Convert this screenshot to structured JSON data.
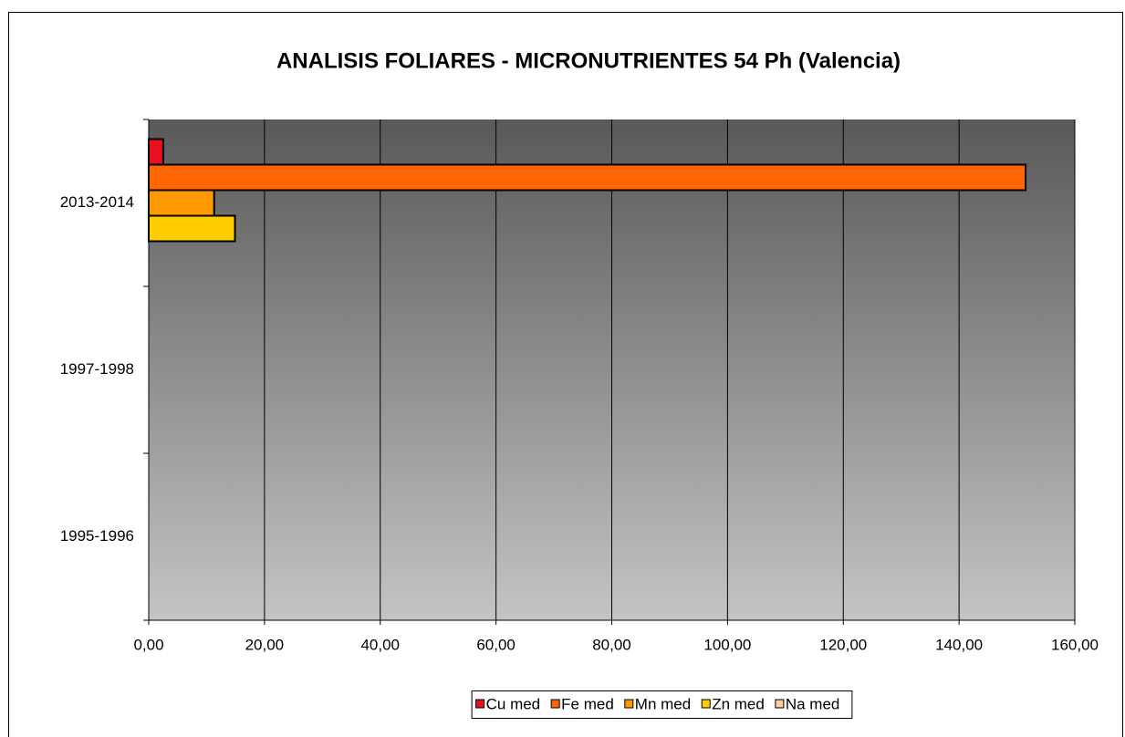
{
  "chart_data": {
    "type": "hbar",
    "title": "ANALISIS FOLIARES - MICRONUTRIENTES 54 Ph (Valencia)",
    "categories": [
      "2013-2014",
      "1997-1998",
      "1995-1996"
    ],
    "series": [
      {
        "name": "Cu med",
        "color": "#e8101e",
        "values": [
          2.5,
          null,
          null
        ]
      },
      {
        "name": "Fe med",
        "color": "#ff6600",
        "values": [
          151.5,
          null,
          null
        ]
      },
      {
        "name": "Mn med",
        "color": "#ff9900",
        "values": [
          11.3,
          null,
          null
        ]
      },
      {
        "name": "Zn med",
        "color": "#ffcc00",
        "values": [
          14.9,
          null,
          null
        ]
      },
      {
        "name": "Na med",
        "color": "#ffcc99",
        "values": [
          null,
          null,
          null
        ]
      }
    ],
    "xlim": [
      0,
      160
    ],
    "xticks": [
      {
        "value": 0,
        "label": "0,00"
      },
      {
        "value": 20,
        "label": "20,00"
      },
      {
        "value": 40,
        "label": "40,00"
      },
      {
        "value": 60,
        "label": "60,00"
      },
      {
        "value": 80,
        "label": "80,00"
      },
      {
        "value": 100,
        "label": "100,00"
      },
      {
        "value": 120,
        "label": "120,00"
      },
      {
        "value": 140,
        "label": "140,00"
      },
      {
        "value": 160,
        "label": "160,00"
      }
    ],
    "grid": true,
    "legend": "bottom"
  }
}
